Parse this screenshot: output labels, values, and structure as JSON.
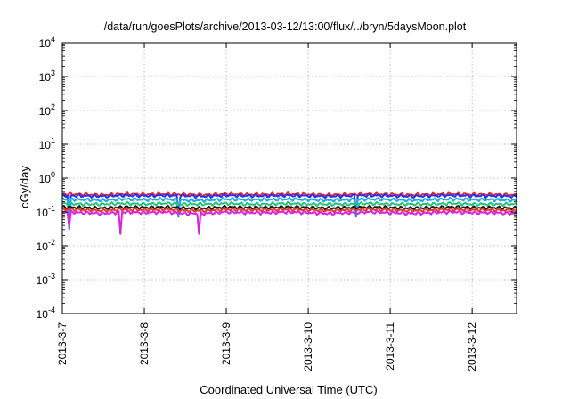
{
  "chart_data": {
    "type": "line",
    "title": "/data/run/goesPlots/archive/2013-03-12/13:00/flux/../bryn/5daysMoon.plot",
    "xlabel": "Coordinated Universal Time (UTC)",
    "ylabel": "cGy/day",
    "yscale": "log",
    "ylim": [
      0.0001,
      10000
    ],
    "xlim": [
      "2013-03-07",
      "2013-03-12T13:00"
    ],
    "grid": true,
    "x_tick_labels": [
      "2013-3-7",
      "2013-3-8",
      "2013-3-9",
      "2013-3-10",
      "2013-3-11",
      "2013-3-12"
    ],
    "y_ticks": [
      {
        "base": "10",
        "exp": "-4"
      },
      {
        "base": "10",
        "exp": "-3"
      },
      {
        "base": "10",
        "exp": "-2"
      },
      {
        "base": "10",
        "exp": "-1"
      },
      {
        "base": "10",
        "exp": "0"
      },
      {
        "base": "10",
        "exp": "1"
      },
      {
        "base": "10",
        "exp": "2"
      },
      {
        "base": "10",
        "exp": "3"
      },
      {
        "base": "10",
        "exp": "4"
      }
    ],
    "x": [
      "2013-03-07T00:00",
      "2013-03-07T06:00",
      "2013-03-07T12:00",
      "2013-03-07T18:00",
      "2013-03-08T00:00",
      "2013-03-08T06:00",
      "2013-03-08T12:00",
      "2013-03-08T18:00",
      "2013-03-09T00:00",
      "2013-03-09T06:00",
      "2013-03-09T12:00",
      "2013-03-09T18:00",
      "2013-03-10T00:00",
      "2013-03-10T06:00",
      "2013-03-10T12:00",
      "2013-03-10T18:00",
      "2013-03-11T00:00",
      "2013-03-11T06:00",
      "2013-03-11T12:00",
      "2013-03-11T18:00",
      "2013-03-12T00:00",
      "2013-03-12T06:00",
      "2013-03-12T12:00"
    ],
    "series": [
      {
        "color": "#e8262b",
        "values": [
          0.34,
          0.33,
          0.32,
          0.34,
          0.33,
          0.34,
          0.33,
          0.32,
          0.34,
          0.33,
          0.33,
          0.34,
          0.33,
          0.32,
          0.33,
          0.34,
          0.33,
          0.32,
          0.33,
          0.34,
          0.33,
          0.33,
          0.32
        ]
      },
      {
        "color": "#2a2ff0",
        "values": [
          0.31,
          0.3,
          0.29,
          0.31,
          0.3,
          0.31,
          0.3,
          0.29,
          0.31,
          0.3,
          0.3,
          0.31,
          0.3,
          0.29,
          0.3,
          0.31,
          0.3,
          0.29,
          0.3,
          0.31,
          0.3,
          0.3,
          0.29
        ]
      },
      {
        "color": "#16a9f2",
        "values": [
          0.24,
          0.23,
          0.22,
          0.24,
          0.23,
          0.24,
          0.22,
          0.22,
          0.24,
          0.23,
          0.23,
          0.24,
          0.23,
          0.22,
          0.23,
          0.24,
          0.23,
          0.22,
          0.23,
          0.24,
          0.23,
          0.23,
          0.22
        ]
      },
      {
        "color": "#25c27a",
        "values": [
          0.18,
          0.17,
          0.17,
          0.18,
          0.17,
          0.18,
          0.17,
          0.17,
          0.18,
          0.17,
          0.17,
          0.18,
          0.17,
          0.17,
          0.17,
          0.18,
          0.17,
          0.17,
          0.17,
          0.18,
          0.17,
          0.17,
          0.17
        ]
      },
      {
        "color": "#1a1a1a",
        "values": [
          0.14,
          0.135,
          0.13,
          0.14,
          0.135,
          0.14,
          0.13,
          0.13,
          0.14,
          0.135,
          0.135,
          0.14,
          0.135,
          0.13,
          0.135,
          0.14,
          0.135,
          0.13,
          0.135,
          0.14,
          0.135,
          0.135,
          0.13
        ]
      },
      {
        "color": "#e23a28",
        "values": [
          0.12,
          0.115,
          0.11,
          0.12,
          0.115,
          0.12,
          0.11,
          0.11,
          0.12,
          0.115,
          0.115,
          0.12,
          0.115,
          0.11,
          0.115,
          0.12,
          0.115,
          0.11,
          0.115,
          0.12,
          0.115,
          0.115,
          0.11
        ]
      },
      {
        "color": "#dc20e6",
        "values": [
          0.1,
          0.095,
          0.09,
          0.1,
          0.095,
          0.1,
          0.09,
          0.09,
          0.1,
          0.095,
          0.095,
          0.1,
          0.095,
          0.09,
          0.095,
          0.1,
          0.095,
          0.09,
          0.095,
          0.1,
          0.095,
          0.095,
          0.09
        ]
      }
    ],
    "dips": [
      {
        "x": "2013-03-07T02:00",
        "series": [
          1,
          2,
          6
        ],
        "min": 0.03
      },
      {
        "x": "2013-03-07T17:00",
        "series": [
          6
        ],
        "min": 0.018
      },
      {
        "x": "2013-03-08T10:00",
        "series": [
          1,
          2,
          6
        ],
        "min": 0.07
      },
      {
        "x": "2013-03-08T16:00",
        "series": [
          6
        ],
        "min": 0.018
      },
      {
        "x": "2013-03-10T14:00",
        "series": [
          1,
          2,
          6
        ],
        "min": 0.07
      }
    ]
  }
}
